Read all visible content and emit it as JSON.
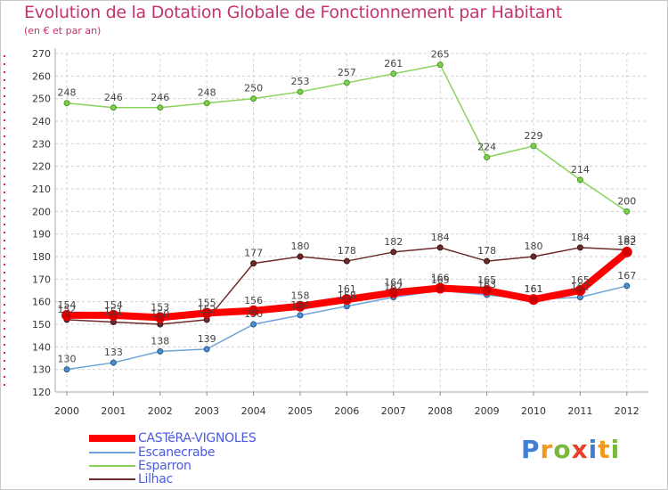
{
  "header": {
    "title": "Evolution de la Dotation Globale de Fonctionnement par Habitant",
    "subtitle": "(en € et par an)"
  },
  "chart_data": {
    "type": "line",
    "categories": [
      "2000",
      "2001",
      "2002",
      "2003",
      "2004",
      "2005",
      "2006",
      "2007",
      "2008",
      "2009",
      "2010",
      "2011",
      "2012"
    ],
    "ylim": [
      120,
      270
    ],
    "yticks": [
      120,
      130,
      140,
      150,
      160,
      170,
      180,
      190,
      200,
      210,
      220,
      230,
      240,
      250,
      260,
      270
    ],
    "grid": true,
    "legend_position": "bottom-left",
    "series": [
      {
        "name": "CASTéRA-VIGNOLES",
        "color": "#ff0000",
        "values": [
          154,
          154,
          153,
          155,
          156,
          158,
          161,
          164,
          166,
          165,
          161,
          165,
          182
        ]
      },
      {
        "name": "Escanecrabe",
        "color": "#6ea3d8",
        "values": [
          130,
          133,
          138,
          139,
          150,
          154,
          158,
          162,
          165,
          163,
          161,
          162,
          167
        ]
      },
      {
        "name": "Esparron",
        "color": "#88d45a",
        "values": [
          248,
          246,
          246,
          248,
          250,
          253,
          257,
          261,
          265,
          224,
          229,
          214,
          200
        ]
      },
      {
        "name": "Lilhac",
        "color": "#6e2b2b",
        "values": [
          152,
          151,
          150,
          152,
          177,
          180,
          178,
          182,
          184,
          178,
          180,
          184,
          183
        ]
      }
    ]
  },
  "logo": {
    "letters": [
      "P",
      "r",
      "o",
      "x",
      "i",
      "t",
      "i"
    ],
    "colors": [
      "#3f7fd6",
      "#f29a1f",
      "#79b83a",
      "#e8402a",
      "#3f7fd6",
      "#f29a1f",
      "#79b83a"
    ]
  }
}
